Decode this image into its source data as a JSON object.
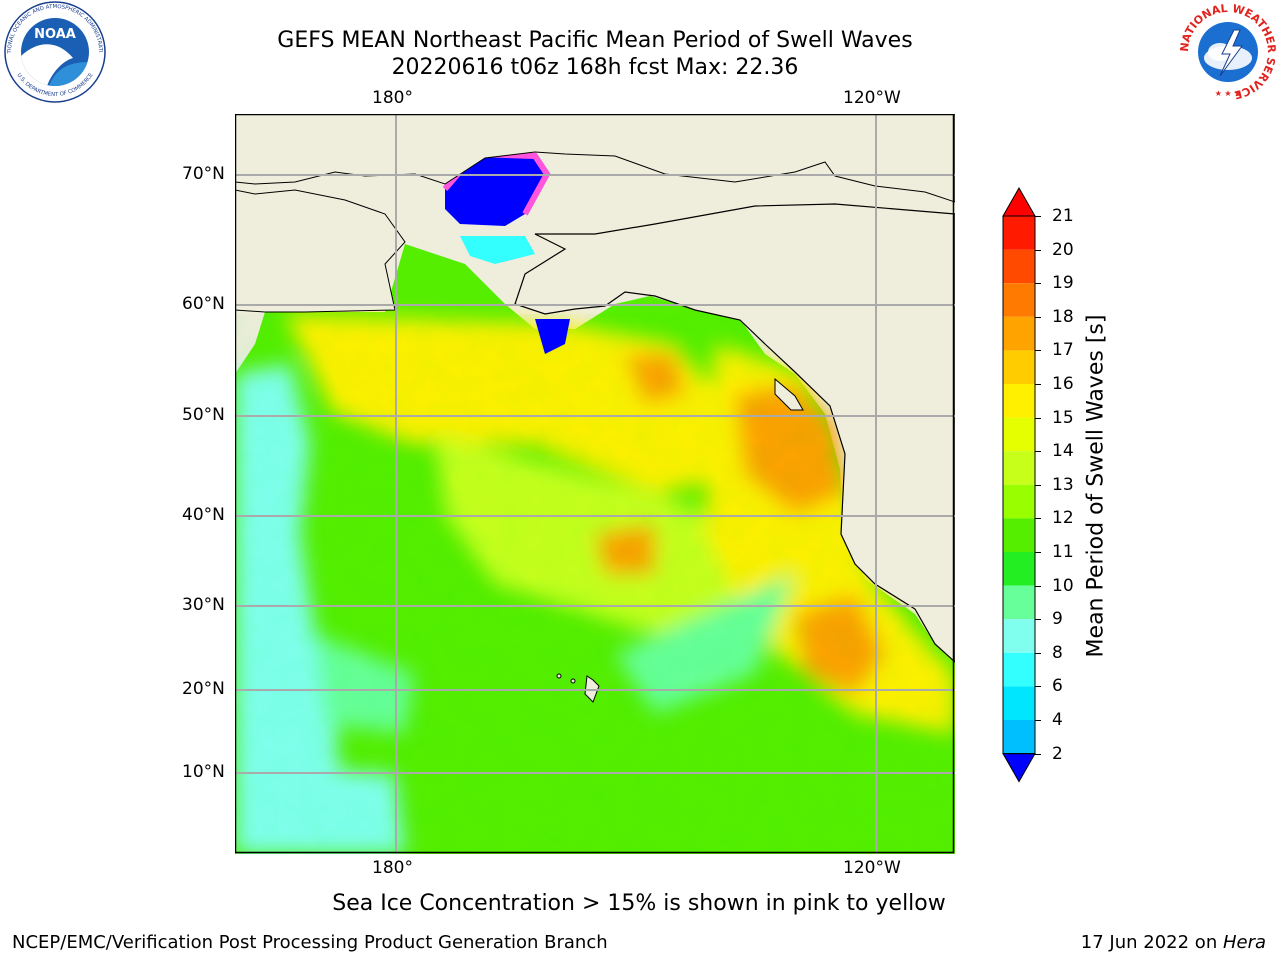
{
  "title_line1": "GEFS MEAN Northeast Pacific Mean Period of Swell Waves",
  "title_line2": "20220616 t06z 168h fcst   Max: 22.36",
  "top_lon_labels": [
    "180°",
    "120°W"
  ],
  "bottom_lon_labels": [
    "180°",
    "120°W"
  ],
  "lat_labels": [
    "70°N",
    "60°N",
    "50°N",
    "40°N",
    "30°N",
    "20°N",
    "10°N"
  ],
  "colorbar": {
    "label": "Mean Period of Swell Waves [s]",
    "ticks": [
      "21",
      "20",
      "19",
      "18",
      "17",
      "16",
      "15",
      "14",
      "13",
      "12",
      "11",
      "10",
      "9",
      "8",
      "6",
      "4",
      "2"
    ],
    "colors": [
      "#ff1a00",
      "#ff4a00",
      "#ff7a00",
      "#ffa300",
      "#ffcc00",
      "#fff000",
      "#e6ff00",
      "#c8ff1a",
      "#99ff00",
      "#55ee00",
      "#22ee22",
      "#66ff99",
      "#80ffee",
      "#33ffff",
      "#00e6ff",
      "#00bfff",
      "#0066ff"
    ],
    "under_color": "#0000ff",
    "over_color": "#ff0000"
  },
  "caption": "Sea Ice Concentration > 15% is shown in pink to yellow",
  "footer_left": "NCEP/EMC/Verification Post Processing Product Generation Branch",
  "footer_right_date": "17 Jun 2022 on ",
  "footer_right_host": "Hera",
  "logos": {
    "noaa_text": "NOAA",
    "noaa_ring": "NATIONAL OCEANIC AND ATMOSPHERIC ADMINISTRATION",
    "noaa_ring_bottom": "U.S. DEPARTMENT OF COMMERCE",
    "nws_ring": "NATIONAL WEATHER SERVICE"
  }
}
